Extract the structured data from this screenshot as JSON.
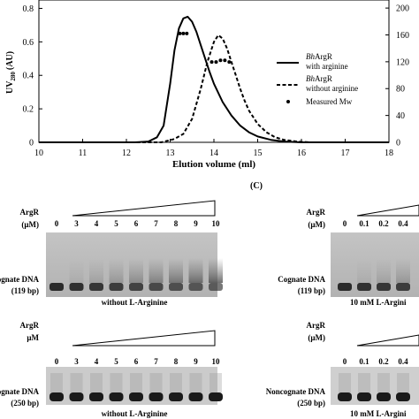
{
  "figure": {
    "panel_c_label": "(C)"
  },
  "chart_data": {
    "type": "line",
    "xlabel": "Elution volume (ml)",
    "ylabel_main": "UV",
    "ylabel_sub": "280",
    "ylabel_unit": "(AU)",
    "xlim": [
      10,
      18
    ],
    "ylim": [
      0,
      0.85
    ],
    "x_ticks": [
      10,
      11,
      12,
      13,
      14,
      15,
      16,
      17,
      18
    ],
    "y_ticks": [
      0,
      0.2,
      0.4,
      0.6,
      0.8
    ],
    "y2_ticks": [
      0,
      40,
      80,
      120,
      160,
      200
    ],
    "y2_tick_labels": [
      "0",
      "40",
      "80",
      "120",
      "160",
      "200"
    ],
    "y2_lim": [
      0,
      212
    ],
    "legend": [
      {
        "italic": "Bh",
        "text": "ArgR",
        "line2": "with arginine",
        "style": "solid"
      },
      {
        "italic": "Bh",
        "text": "ArgR",
        "line2": "without arginine",
        "style": "dashed"
      },
      {
        "text": "Measured Mw",
        "style": "dot"
      }
    ],
    "series": [
      {
        "name": "BhArgR with arginine",
        "style": "solid",
        "x": [
          10,
          12.2,
          12.5,
          12.7,
          12.85,
          13.0,
          13.1,
          13.2,
          13.3,
          13.4,
          13.5,
          13.6,
          13.7,
          13.8,
          13.9,
          14.0,
          14.2,
          14.4,
          14.6,
          14.8,
          15.0,
          15.3,
          15.6,
          16.0,
          18
        ],
        "y": [
          0,
          0,
          0.005,
          0.03,
          0.1,
          0.35,
          0.55,
          0.68,
          0.74,
          0.75,
          0.72,
          0.66,
          0.58,
          0.5,
          0.42,
          0.35,
          0.24,
          0.16,
          0.1,
          0.06,
          0.035,
          0.015,
          0.005,
          0,
          0
        ]
      },
      {
        "name": "BhArgR without arginine",
        "style": "dashed",
        "x": [
          10,
          12.8,
          13.1,
          13.3,
          13.5,
          13.7,
          13.85,
          14.0,
          14.1,
          14.2,
          14.3,
          14.4,
          14.5,
          14.6,
          14.7,
          14.8,
          15.0,
          15.2,
          15.4,
          15.6,
          15.9,
          16.2,
          18
        ],
        "y": [
          0,
          0,
          0.02,
          0.05,
          0.14,
          0.32,
          0.48,
          0.6,
          0.64,
          0.62,
          0.56,
          0.48,
          0.4,
          0.32,
          0.25,
          0.19,
          0.11,
          0.06,
          0.03,
          0.015,
          0.005,
          0,
          0
        ]
      },
      {
        "name": "Measured Mw",
        "style": "dot",
        "x": [
          13.22,
          13.3,
          13.38,
          13.95,
          14.05,
          14.15,
          14.25,
          14.35
        ],
        "y": [
          0.65,
          0.65,
          0.65,
          0.48,
          0.48,
          0.49,
          0.49,
          0.48
        ]
      }
    ]
  },
  "gels": {
    "left_top": {
      "protein": "ArgR",
      "unit": "(μM)",
      "lanes": [
        "0",
        "3",
        "4",
        "5",
        "6",
        "7",
        "8",
        "9",
        "10"
      ],
      "dna_label": "Cognate DNA",
      "dna_size": "(119 bp)",
      "condition": "without L-Arginine"
    },
    "left_bottom": {
      "protein": "ArgR",
      "unit": "μM",
      "lanes": [
        "0",
        "3",
        "4",
        "5",
        "6",
        "7",
        "8",
        "9",
        "10"
      ],
      "dna_label": "Noncognate DNA",
      "dna_size": "(250 bp)",
      "condition": "without L-Arginine"
    },
    "right_top": {
      "protein": "ArgR",
      "unit": "(μM)",
      "lanes": [
        "0",
        "0.1",
        "0.2",
        "0.4"
      ],
      "dna_label": "Cognate DNA",
      "dna_size": "(119 bp)",
      "condition": "10 mM L-Argini"
    },
    "right_bottom": {
      "protein": "ArgR",
      "unit": "(μM)",
      "lanes": [
        "0",
        "0.1",
        "0.2",
        "0.4"
      ],
      "dna_label": "Noncognate DNA",
      "dna_size": "(250 bp)",
      "condition": "10 mM L-Argini"
    }
  }
}
